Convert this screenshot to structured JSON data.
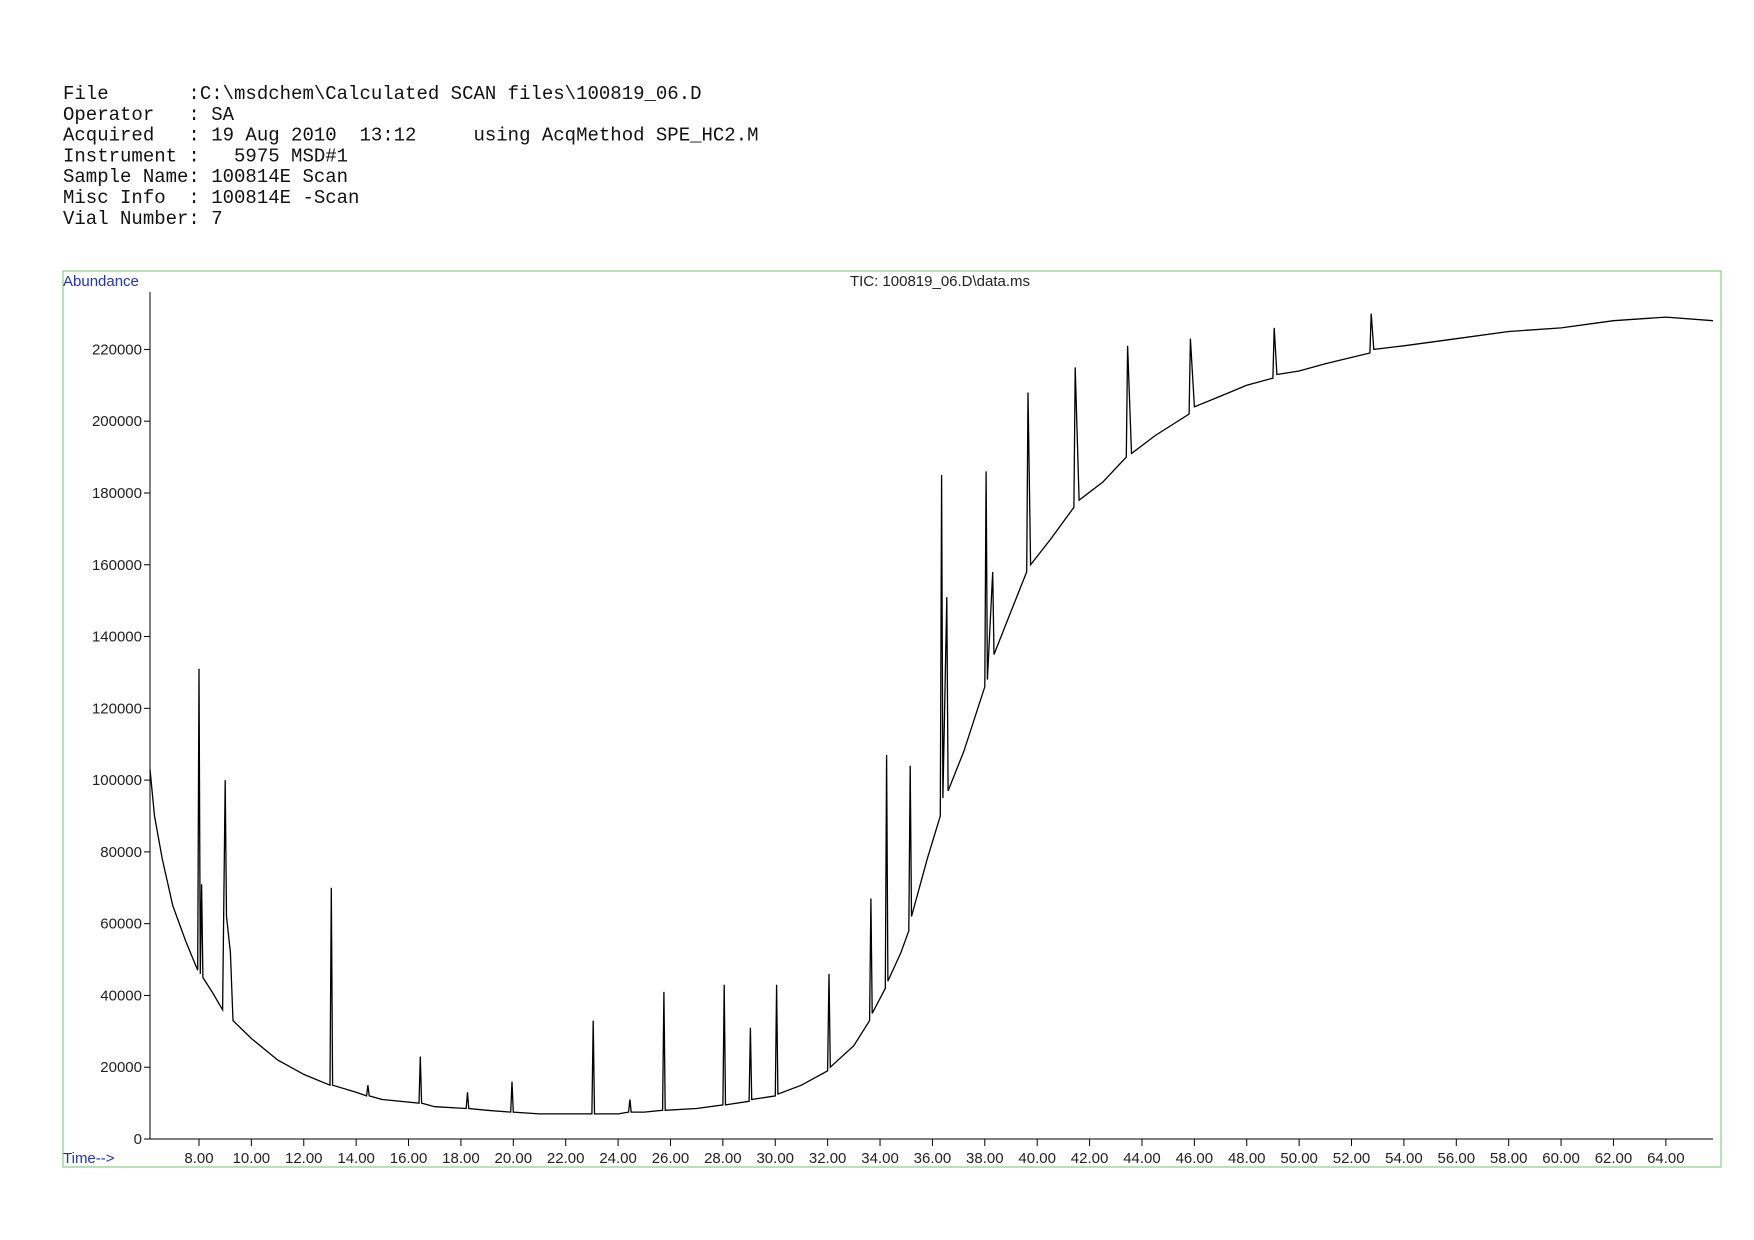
{
  "header_lines": [
    "File       :C:\\msdchem\\Calculated SCAN files\\100819_06.D",
    "Operator   : SA",
    "Acquired   : 19 Aug 2010  13:12     using AcqMethod SPE_HC2.M",
    "Instrument :   5975 MSD#1",
    "Sample Name: 100814E Scan",
    "Misc Info  : 100814E -Scan",
    "Vial Number: 7"
  ],
  "chart_data": {
    "type": "line",
    "title": "TIC: 100819_06.D\\data.ms",
    "ylabel": "Abundance",
    "xlabel": "Time-->",
    "xlim": [
      6.13,
      65.8
    ],
    "ylim": [
      0,
      236000
    ],
    "color": "#000000",
    "yticks": [
      0,
      20000,
      40000,
      60000,
      80000,
      100000,
      120000,
      140000,
      160000,
      180000,
      200000,
      220000
    ],
    "xticks": [
      {
        "value": 8,
        "label": "8.00"
      },
      {
        "value": 10,
        "label": "10.00"
      },
      {
        "value": 12,
        "label": "12.00"
      },
      {
        "value": 14,
        "label": "14.00"
      },
      {
        "value": 16,
        "label": "16.00"
      },
      {
        "value": 18,
        "label": "18.00"
      },
      {
        "value": 20,
        "label": "20.00"
      },
      {
        "value": 22,
        "label": "22.00"
      },
      {
        "value": 24,
        "label": "24.00"
      },
      {
        "value": 26,
        "label": "26.00"
      },
      {
        "value": 28,
        "label": "28.00"
      },
      {
        "value": 30,
        "label": "30.00"
      },
      {
        "value": 32,
        "label": "32.00"
      },
      {
        "value": 34,
        "label": "34.00"
      },
      {
        "value": 36,
        "label": "36.00"
      },
      {
        "value": 38,
        "label": "38.00"
      },
      {
        "value": 40,
        "label": "40.00"
      },
      {
        "value": 42,
        "label": "42.00"
      },
      {
        "value": 44,
        "label": "44.00"
      },
      {
        "value": 46,
        "label": "46.00"
      },
      {
        "value": 48,
        "label": "48.00"
      },
      {
        "value": 50,
        "label": "50.00"
      },
      {
        "value": 52,
        "label": "52.00"
      },
      {
        "value": 54,
        "label": "54.00"
      },
      {
        "value": 56,
        "label": "56.00"
      },
      {
        "value": 58,
        "label": "58.00"
      },
      {
        "value": 60,
        "label": "60.00"
      },
      {
        "value": 62,
        "label": "62.00"
      },
      {
        "value": 64,
        "label": "64.00"
      }
    ],
    "x": [
      6.13,
      6.3,
      6.6,
      7.0,
      7.5,
      7.95,
      8.0,
      8.05,
      8.1,
      8.15,
      8.5,
      8.9,
      9.0,
      9.05,
      9.2,
      9.3,
      10,
      11,
      12,
      13.0,
      13.05,
      13.1,
      14,
      14.4,
      14.45,
      14.5,
      15,
      16.4,
      16.45,
      16.5,
      17,
      18.2,
      18.25,
      18.3,
      19,
      19.9,
      19.95,
      20.0,
      21,
      22,
      23.0,
      23.05,
      23.1,
      24,
      24.4,
      24.45,
      24.5,
      25,
      25.7,
      25.75,
      25.8,
      27,
      28.0,
      28.05,
      28.1,
      29.0,
      29.05,
      29.1,
      30.0,
      30.05,
      30.1,
      31,
      32.0,
      32.05,
      32.1,
      33,
      33.6,
      33.65,
      33.7,
      34.2,
      34.25,
      34.3,
      34.8,
      35.1,
      35.15,
      35.2,
      35.8,
      36.3,
      36.35,
      36.4,
      36.55,
      36.6,
      37.2,
      38.0,
      38.05,
      38.1,
      38.3,
      38.35,
      39,
      39.6,
      39.65,
      39.75,
      40.5,
      41.4,
      41.45,
      41.6,
      42.5,
      43.4,
      43.45,
      43.6,
      44.5,
      45.8,
      45.85,
      46,
      47,
      48,
      49,
      49.05,
      49.15,
      50,
      51,
      52.7,
      52.75,
      52.85,
      54,
      56,
      58,
      60,
      62,
      64,
      65.8
    ],
    "series": [
      {
        "name": "TIC",
        "color": "#000000",
        "values": [
          103000,
          90000,
          78000,
          65000,
          55000,
          47000,
          131000,
          46000,
          71000,
          45000,
          41000,
          36000,
          100000,
          62000,
          52000,
          33000,
          28000,
          22000,
          18000,
          15000,
          70000,
          15000,
          13000,
          12000,
          15000,
          12000,
          11000,
          10000,
          23000,
          10000,
          9000,
          8500,
          13000,
          8500,
          8000,
          7500,
          16000,
          7500,
          7000,
          7000,
          7000,
          33000,
          7000,
          7000,
          7500,
          11000,
          7500,
          7500,
          8000,
          41000,
          8000,
          8500,
          9500,
          43000,
          9500,
          10500,
          31000,
          11000,
          12000,
          43000,
          12500,
          15000,
          19000,
          46000,
          20000,
          26000,
          33000,
          67000,
          35000,
          42000,
          107000,
          44000,
          52000,
          58000,
          104000,
          62000,
          78000,
          90000,
          185000,
          95000,
          151000,
          97000,
          108000,
          126000,
          186000,
          128000,
          158000,
          135000,
          147000,
          158000,
          208000,
          160000,
          167000,
          176000,
          215000,
          178000,
          183000,
          190000,
          221000,
          191000,
          196000,
          202000,
          223000,
          204000,
          207000,
          210000,
          212000,
          226000,
          213000,
          214000,
          216000,
          219000,
          230000,
          220000,
          221000,
          223000,
          225000,
          226000,
          228000,
          229000,
          228000
        ]
      }
    ]
  }
}
